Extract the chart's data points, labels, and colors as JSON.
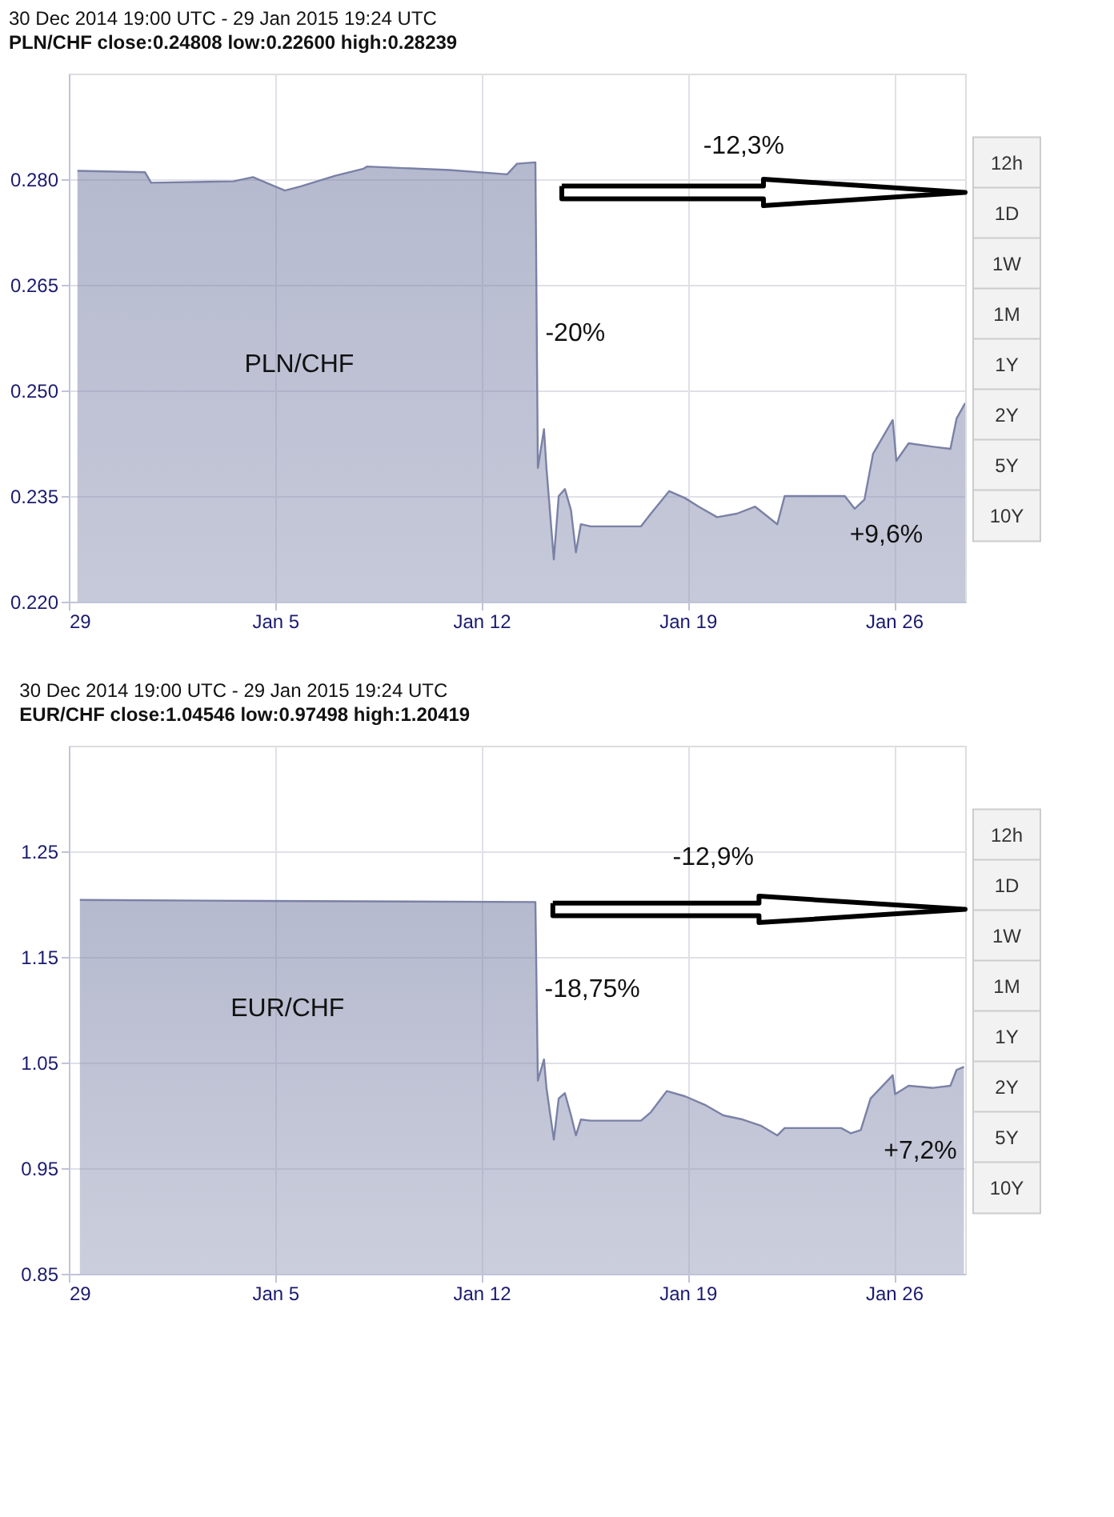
{
  "chart_data": [
    {
      "type": "area",
      "title": "30 Dec 2014 19:00 UTC - 29 Jan 2015 19:24 UTC",
      "subtitle": "PLN/CHF close:0.24808 low:0.22600 high:0.28239",
      "xlim": [
        "2014-12-29T00:00",
        "2015-01-28T10:00"
      ],
      "xticks": [
        {
          "value": "2014-12-29T00:00",
          "label": "29"
        },
        {
          "value": "2015-01-05T00:00",
          "label": "Jan 5"
        },
        {
          "value": "2015-01-12T00:00",
          "label": "Jan 12"
        },
        {
          "value": "2015-01-19T00:00",
          "label": "Jan 19"
        },
        {
          "value": "2015-01-26T00:00",
          "label": "Jan 26"
        }
      ],
      "ylim": [
        0.22,
        0.295
      ],
      "yticks": [
        {
          "value": 0.22,
          "label": "0.220"
        },
        {
          "value": 0.235,
          "label": "0.235"
        },
        {
          "value": 0.25,
          "label": "0.250"
        },
        {
          "value": 0.265,
          "label": "0.265"
        },
        {
          "value": 0.28,
          "label": "0.280"
        }
      ],
      "grid": true,
      "series": [
        {
          "color": "#7a81a6",
          "x": [
            "2014-12-29T07:00",
            "2014-12-31T14:00",
            "2014-12-31T19:00",
            "2015-01-03T14:00",
            "2015-01-04T06:00",
            "2015-01-04T21:00",
            "2015-01-05T08:00",
            "2015-01-05T21:00",
            "2015-01-07T01:00",
            "2015-01-08T00:00",
            "2015-01-08T03:00",
            "2015-01-10T22:00",
            "2015-01-12T21:00",
            "2015-01-13T05:00",
            "2015-01-13T20:00",
            "2015-01-13T22:00",
            "2015-01-14T03:00",
            "2015-01-14T05:00",
            "2015-01-14T11:00",
            "2015-01-14T15:00",
            "2015-01-14T20:00",
            "2015-01-15T01:00",
            "2015-01-15T05:00",
            "2015-01-15T09:00",
            "2015-01-15T17:00",
            "2015-01-17T10:00",
            "2015-01-17T18:00",
            "2015-01-18T09:00",
            "2015-01-18T22:00",
            "2015-01-19T09:00",
            "2015-01-20T00:00",
            "2015-01-20T16:00",
            "2015-01-21T07:00",
            "2015-01-22T01:00",
            "2015-01-22T07:00",
            "2015-01-24T08:00",
            "2015-01-24T16:00",
            "2015-01-25T00:00",
            "2015-01-25T07:00",
            "2015-01-25T23:00",
            "2015-01-26T02:00",
            "2015-01-26T12:00",
            "2015-01-27T08:00",
            "2015-01-27T22:00",
            "2015-01-28T03:00",
            "2015-01-28T10:00"
          ],
          "values": [
            0.2812,
            0.281,
            0.2795,
            0.2797,
            0.2803,
            0.2792,
            0.2784,
            0.279,
            0.2805,
            0.2815,
            0.2818,
            0.2813,
            0.2807,
            0.2822,
            0.2824,
            0.239,
            0.2445,
            0.239,
            0.226,
            0.235,
            0.236,
            0.233,
            0.227,
            0.231,
            0.2307,
            0.2307,
            0.2325,
            0.2357,
            0.2347,
            0.2335,
            0.232,
            0.2325,
            0.2335,
            0.231,
            0.235,
            0.235,
            0.2332,
            0.2345,
            0.241,
            0.2458,
            0.24,
            0.2425,
            0.242,
            0.2417,
            0.246,
            0.2482
          ]
        }
      ],
      "annotations": [
        "PLN/CHF",
        "-12,3%",
        "-20%",
        "+9,6%",
        "12h",
        "1D",
        "1W",
        "1M",
        "1Y",
        "2Y",
        "5Y",
        "10Y"
      ]
    },
    {
      "type": "area",
      "title": "30 Dec 2014 19:00 UTC - 29 Jan 2015 19:24 UTC",
      "subtitle": "EUR/CHF close:1.04546 low:0.97498 high:1.20419",
      "xlim": [
        "2014-12-29T00:00",
        "2015-01-28T10:00"
      ],
      "xticks": [
        {
          "value": "2014-12-29T00:00",
          "label": "29"
        },
        {
          "value": "2015-01-05T00:00",
          "label": "Jan 5"
        },
        {
          "value": "2015-01-12T00:00",
          "label": "Jan 12"
        },
        {
          "value": "2015-01-19T00:00",
          "label": "Jan 19"
        },
        {
          "value": "2015-01-26T00:00",
          "label": "Jan 26"
        }
      ],
      "ylim": [
        0.85,
        1.35
      ],
      "yticks": [
        0.85,
        0.95,
        1.05,
        1.15,
        1.25
      ],
      "grid": true,
      "series": [
        {
          "color": "#7a81a6",
          "x": [
            "2014-12-29T09:00",
            "2015-01-04T11:00",
            "2015-01-13T20:00",
            "2015-01-13T22:00",
            "2015-01-14T03:00",
            "2015-01-14T05:00",
            "2015-01-14T11:00",
            "2015-01-14T15:00",
            "2015-01-14T20:00",
            "2015-01-15T01:00",
            "2015-01-15T05:00",
            "2015-01-15T09:00",
            "2015-01-15T17:00",
            "2015-01-17T10:00",
            "2015-01-17T18:00",
            "2015-01-18T07:00",
            "2015-01-18T22:00",
            "2015-01-19T14:00",
            "2015-01-20T05:00",
            "2015-01-20T21:00",
            "2015-01-21T12:00",
            "2015-01-22T01:00",
            "2015-01-22T07:00",
            "2015-01-24T05:00",
            "2015-01-24T13:00",
            "2015-01-24T21:00",
            "2015-01-25T05:00",
            "2015-01-25T23:00",
            "2015-01-26T01:00",
            "2015-01-26T12:00",
            "2015-01-27T08:00",
            "2015-01-27T22:00",
            "2015-01-28T03:00",
            "2015-01-28T09:00"
          ],
          "values": [
            1.204,
            1.203,
            1.202,
            1.033,
            1.053,
            1.026,
            0.977,
            1.016,
            1.021,
            1.0,
            0.981,
            0.996,
            0.995,
            0.995,
            1.003,
            1.023,
            1.018,
            1.01,
            1.0,
            0.996,
            0.99,
            0.981,
            0.988,
            0.988,
            0.983,
            0.986,
            1.016,
            1.038,
            1.02,
            1.028,
            1.026,
            1.028,
            1.043,
            1.046
          ]
        }
      ],
      "annotations": [
        "EUR/CHF",
        "-12,9%",
        "-18,75%",
        "+7,2%",
        "12h",
        "1D",
        "1W",
        "1M",
        "1Y",
        "2Y",
        "5Y",
        "10Y"
      ]
    }
  ]
}
